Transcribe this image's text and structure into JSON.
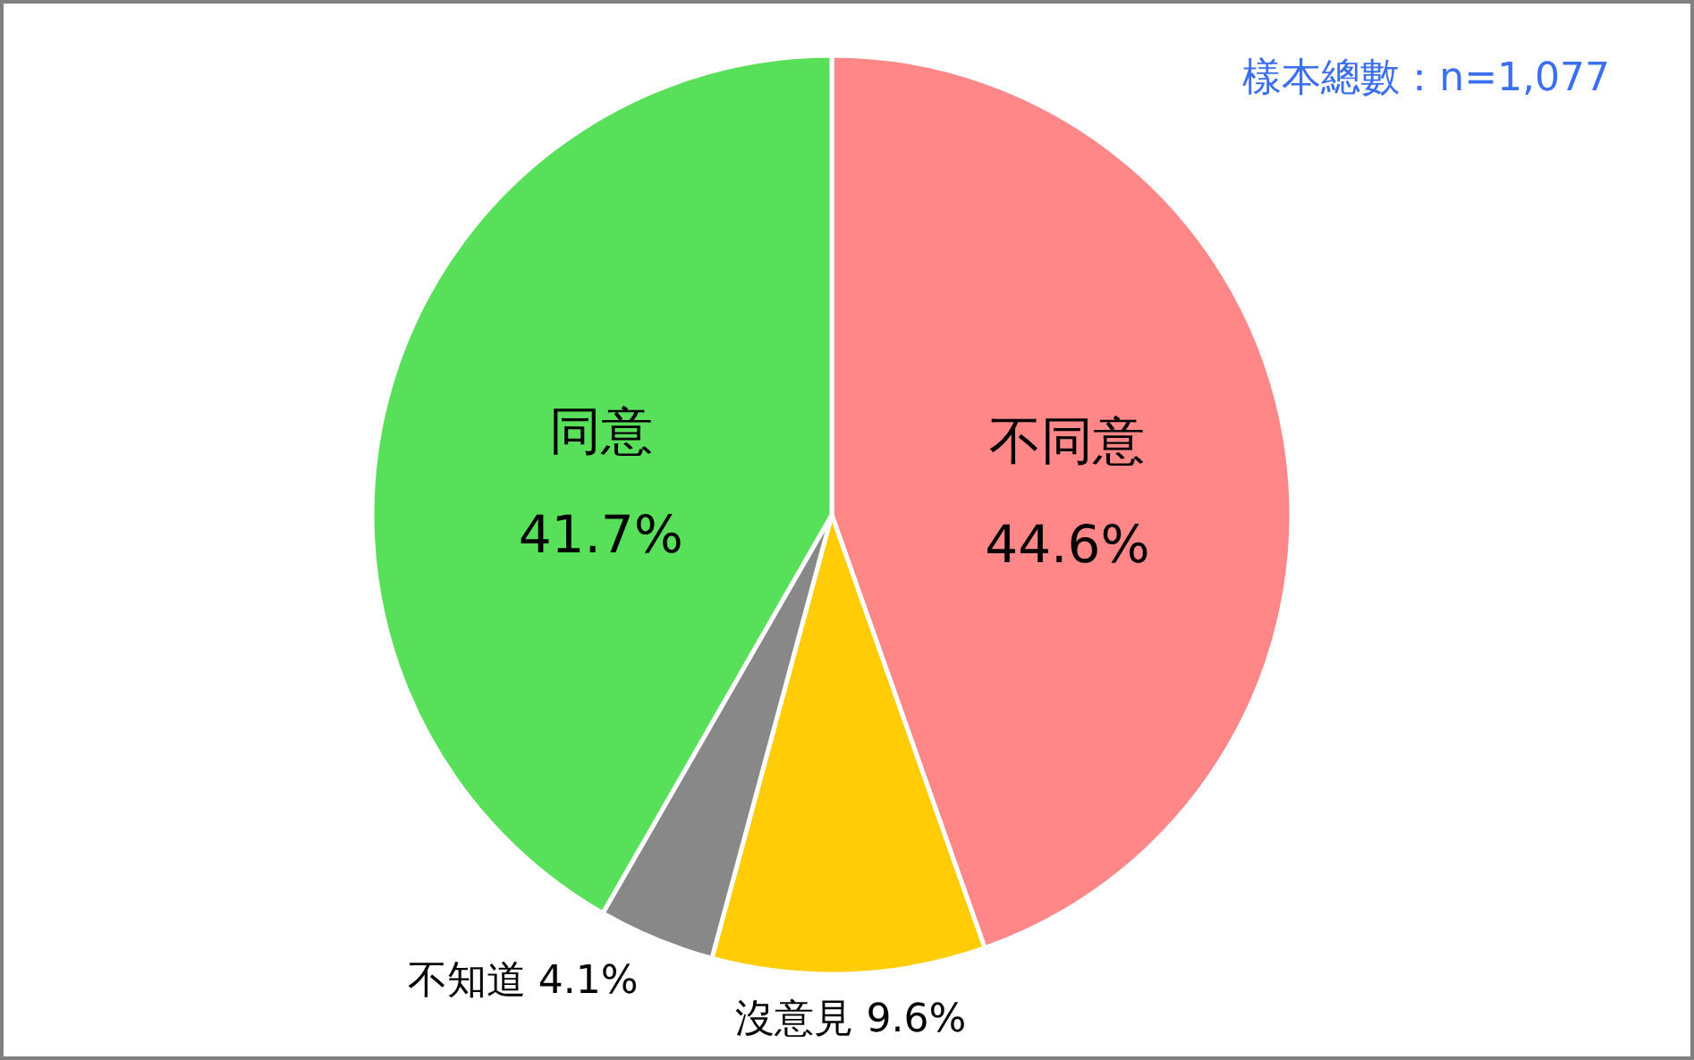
{
  "chart_data": {
    "type": "pie",
    "categories": [
      "不同意",
      "沒意見",
      "不知道",
      "同意"
    ],
    "values": [
      44.6,
      9.6,
      4.1,
      41.7
    ],
    "colors": [
      "#ff8787",
      "#ffcc05",
      "#888888",
      "#58e05a"
    ],
    "value_labels": [
      "44.6%",
      "9.6%",
      "4.1%",
      "41.7%"
    ],
    "annotations": [
      "樣本總數：n=1,077"
    ]
  }
}
